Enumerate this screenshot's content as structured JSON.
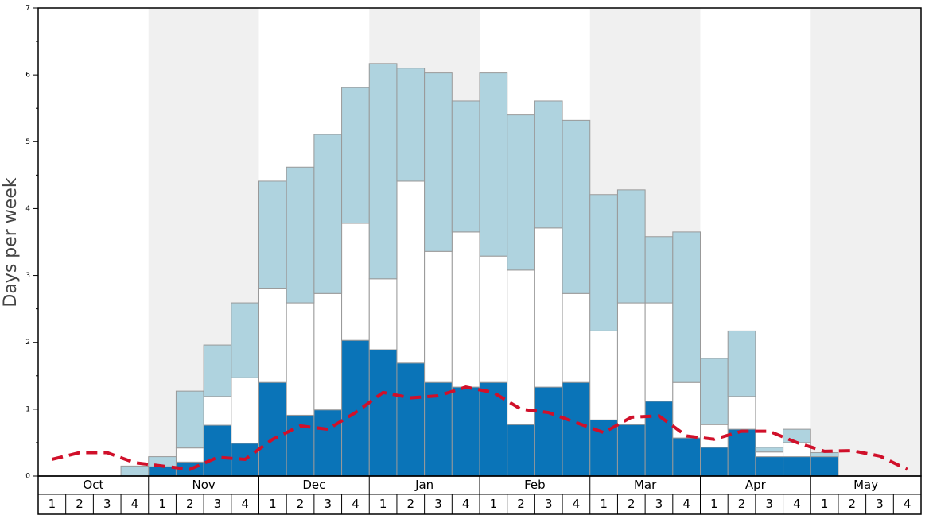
{
  "chart_data": {
    "type": "bar",
    "stacked": true,
    "ylabel": "Days per week",
    "months": [
      "Oct",
      "Nov",
      "Dec",
      "Jan",
      "Feb",
      "Mar",
      "Apr",
      "May"
    ],
    "week_labels": [
      "1",
      "2",
      "3",
      "4"
    ],
    "ylim": [
      0,
      7
    ],
    "yticks": [
      0,
      1,
      2,
      3,
      4,
      5,
      6,
      7
    ],
    "yticks_minor": [
      0.5,
      1.5,
      2.5,
      3.5,
      4.5,
      5.5,
      6.5
    ],
    "band_color": "#f0f0f0",
    "series": [
      {
        "color": "#0a74b8",
        "values": [
          0,
          0,
          0,
          0,
          0.14,
          0.21,
          0.76,
          0.49,
          1.4,
          0.91,
          0.99,
          2.03,
          1.89,
          1.69,
          1.4,
          1.33,
          1.4,
          0.77,
          1.33,
          1.4,
          0.84,
          0.77,
          1.12,
          0.57,
          0.43,
          0.7,
          0.29,
          0.29,
          0.29,
          0,
          0,
          0
        ]
      },
      {
        "color": "#ffffff",
        "values": [
          0,
          0,
          0,
          0,
          0,
          0.21,
          0.43,
          0.98,
          1.4,
          1.68,
          1.74,
          1.75,
          1.06,
          2.72,
          1.96,
          2.32,
          1.89,
          2.31,
          2.38,
          1.33,
          1.33,
          1.82,
          1.47,
          0.83,
          0.34,
          0.49,
          0.07,
          0.21,
          0,
          0,
          0,
          0
        ]
      },
      {
        "color": "#afd3df",
        "values": [
          0,
          0,
          0,
          0.15,
          0.15,
          0.85,
          0.77,
          1.12,
          1.61,
          2.03,
          2.38,
          2.03,
          3.22,
          1.69,
          2.67,
          1.96,
          2.74,
          2.32,
          1.9,
          2.59,
          2.04,
          1.69,
          0.99,
          2.25,
          0.99,
          0.98,
          0.07,
          0.2,
          0.06,
          0,
          0,
          0
        ]
      },
      {
        "type": "line",
        "color": "#d0102a",
        "values": [
          0.25,
          0.35,
          0.35,
          0.2,
          0.15,
          0.1,
          0.28,
          0.25,
          0.55,
          0.75,
          0.7,
          0.95,
          1.25,
          1.17,
          1.2,
          1.33,
          1.25,
          1.0,
          0.95,
          0.8,
          0.65,
          0.88,
          0.9,
          0.6,
          0.55,
          0.67,
          0.67,
          0.5,
          0.37,
          0.38,
          0.3,
          0.1
        ]
      }
    ]
  }
}
